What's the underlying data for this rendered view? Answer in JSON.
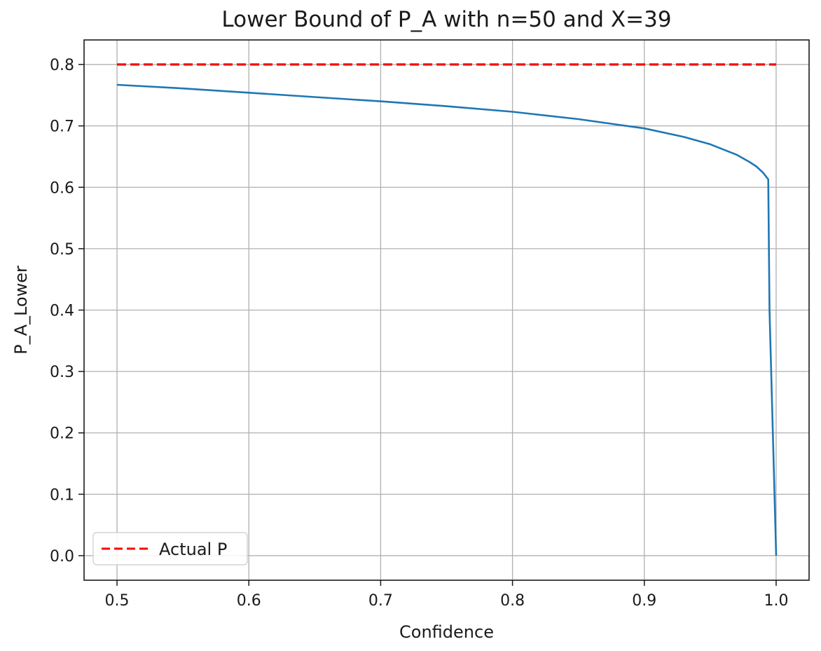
{
  "chart_data": {
    "type": "line",
    "title": "Lower Bound of P_A with n=50 and X=39",
    "xlabel": "Confidence",
    "ylabel": "P_A_Lower",
    "xlim": [
      0.475,
      1.025
    ],
    "ylim": [
      -0.04,
      0.84
    ],
    "xticks": [
      0.5,
      0.6,
      0.7,
      0.8,
      0.9,
      1.0
    ],
    "xtick_labels": [
      "0.5",
      "0.6",
      "0.7",
      "0.8",
      "0.9",
      "1.0"
    ],
    "yticks": [
      0.0,
      0.1,
      0.2,
      0.3,
      0.4,
      0.5,
      0.6,
      0.7,
      0.8
    ],
    "ytick_labels": [
      "0.0",
      "0.1",
      "0.2",
      "0.3",
      "0.4",
      "0.5",
      "0.6",
      "0.7",
      "0.8"
    ],
    "grid": true,
    "legend_position": "lower-left",
    "series": [
      {
        "name": "",
        "style": "solid",
        "color": "#1f77b4",
        "x": [
          0.5,
          0.55,
          0.6,
          0.65,
          0.7,
          0.75,
          0.8,
          0.85,
          0.9,
          0.93,
          0.95,
          0.97,
          0.98,
          0.985,
          0.99,
          0.994,
          0.995,
          1.0
        ],
        "y": [
          0.767,
          0.761,
          0.754,
          0.747,
          0.74,
          0.732,
          0.723,
          0.711,
          0.696,
          0.682,
          0.67,
          0.653,
          0.641,
          0.634,
          0.624,
          0.613,
          0.4,
          0.0
        ]
      },
      {
        "name": "Actual P",
        "style": "dashed",
        "color": "#ff0000",
        "x": [
          0.5,
          1.0
        ],
        "y": [
          0.8,
          0.8
        ]
      }
    ]
  }
}
